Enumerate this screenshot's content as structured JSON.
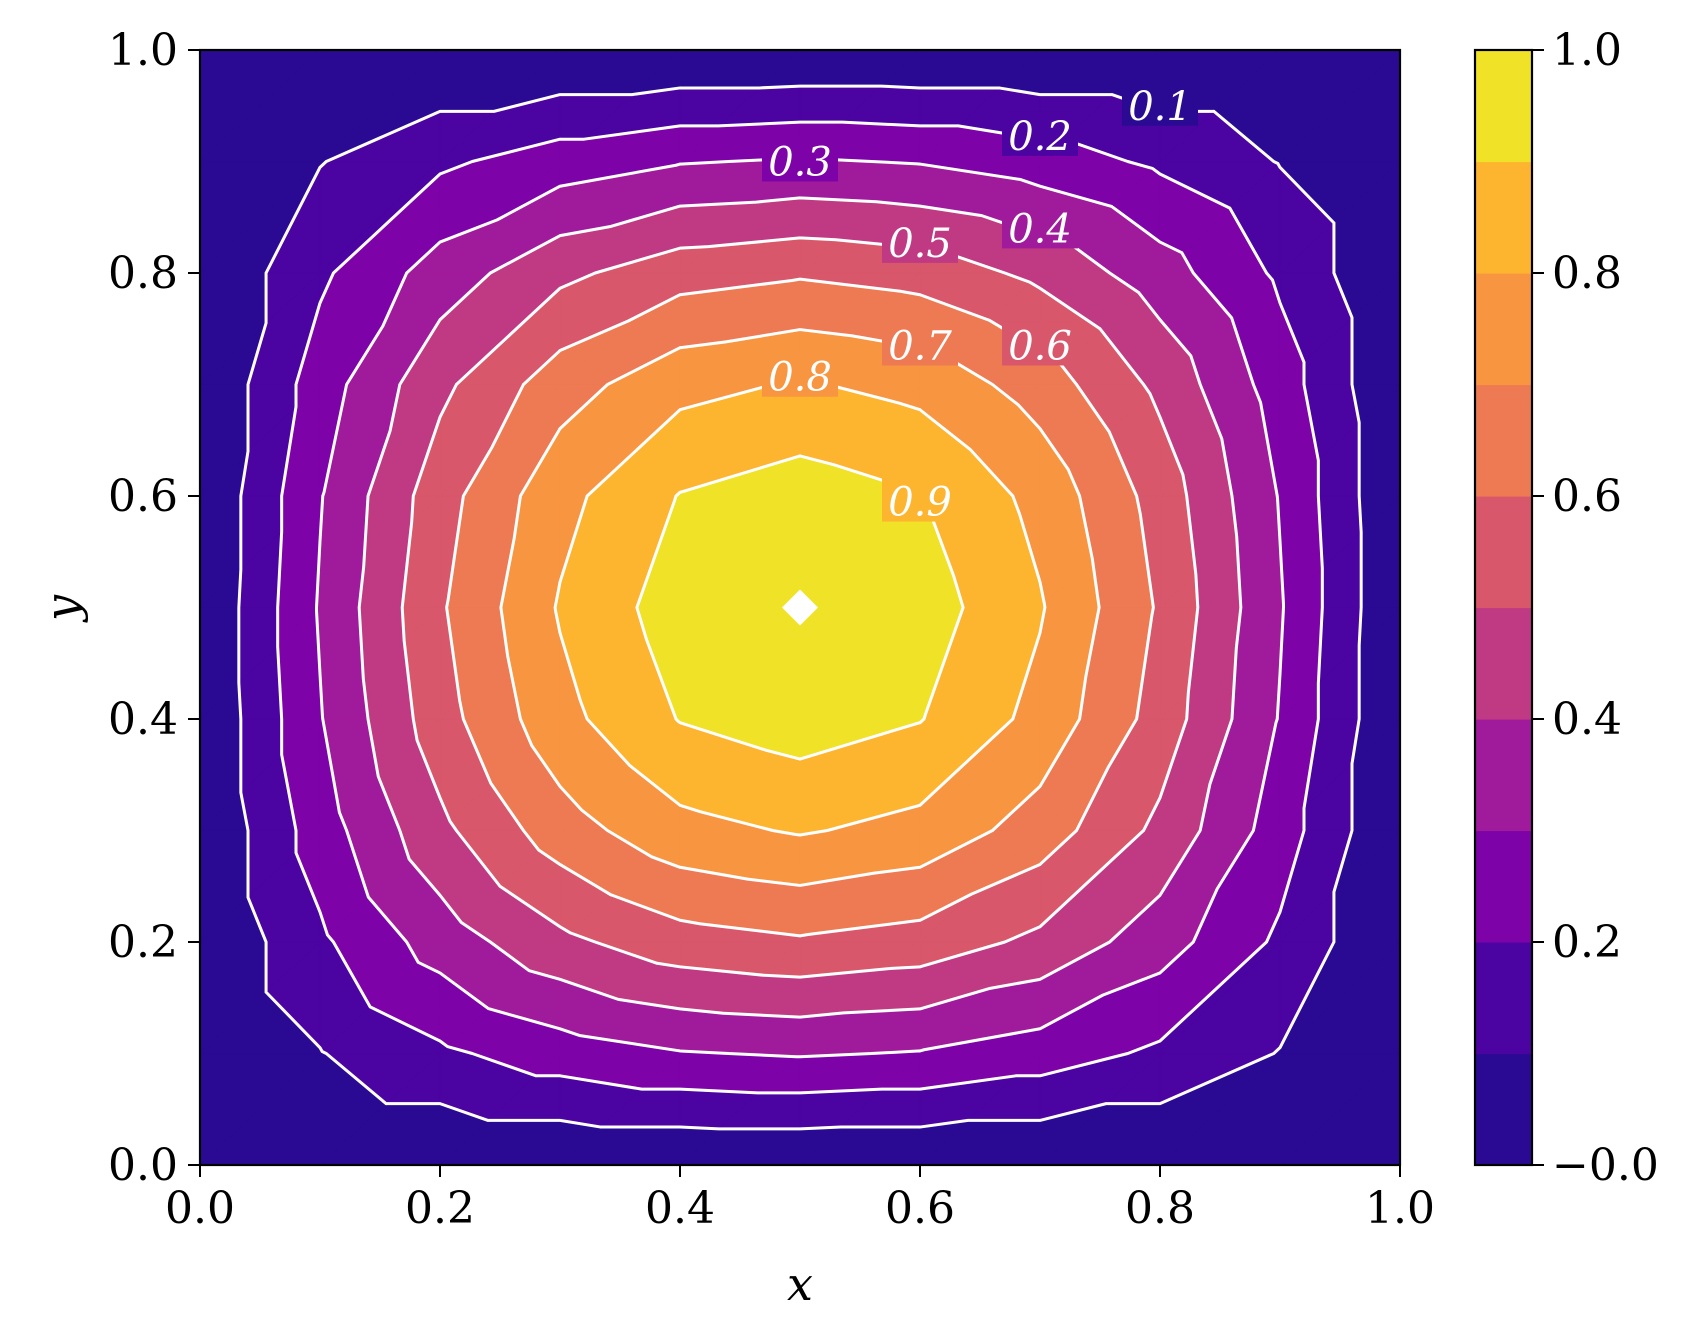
{
  "chart_data": {
    "type": "contourf",
    "function": "u(x, y) = sin(pi*x) * sin(pi*y)",
    "grid_step": 0.1,
    "xlabel": "x",
    "ylabel": "y",
    "xlim": [
      0.0,
      1.0
    ],
    "ylim": [
      0.0,
      1.0
    ],
    "xticks": [
      "0.0",
      "0.2",
      "0.4",
      "0.6",
      "0.8",
      "1.0"
    ],
    "yticks": [
      "0.0",
      "0.2",
      "0.4",
      "0.6",
      "0.8",
      "1.0"
    ],
    "fill_levels": [
      0.0,
      0.1,
      0.2,
      0.3,
      0.4,
      0.5,
      0.6,
      0.7,
      0.8,
      0.9,
      1.0
    ],
    "fill_colors": [
      "#2a0a93",
      "#4b03a1",
      "#7d03a8",
      "#a01b9b",
      "#c03a83",
      "#d8576b",
      "#ed7a52",
      "#f89540",
      "#fdb42f",
      "#f0e226"
    ],
    "contour_lines": [
      0.1,
      0.2,
      0.3,
      0.4,
      0.5,
      0.6,
      0.7,
      0.8,
      0.9
    ],
    "contour_color": "#ffffff",
    "contour_labels": [
      {
        "text": "0.1",
        "x": 0.8,
        "y": 0.95
      },
      {
        "text": "0.2",
        "x": 0.7,
        "y": 0.923
      },
      {
        "text": "0.3",
        "x": 0.5,
        "y": 0.9
      },
      {
        "text": "0.4",
        "x": 0.7,
        "y": 0.84
      },
      {
        "text": "0.5",
        "x": 0.6,
        "y": 0.827
      },
      {
        "text": "0.6",
        "x": 0.7,
        "y": 0.735
      },
      {
        "text": "0.7",
        "x": 0.6,
        "y": 0.735
      },
      {
        "text": "0.8",
        "x": 0.5,
        "y": 0.707
      },
      {
        "text": "0.9",
        "x": 0.6,
        "y": 0.595
      }
    ],
    "max_marker": {
      "x": 0.5,
      "y": 0.5,
      "value": 1.0,
      "shape": "diamond",
      "color": "#ffffff"
    },
    "colorbar": {
      "ticks": [
        {
          "value": 0.0,
          "label": "−0.0"
        },
        {
          "value": 0.2,
          "label": "0.2"
        },
        {
          "value": 0.4,
          "label": "0.4"
        },
        {
          "value": 0.6,
          "label": "0.6"
        },
        {
          "value": 0.8,
          "label": "0.8"
        },
        {
          "value": 1.0,
          "label": "1.0"
        }
      ]
    }
  }
}
